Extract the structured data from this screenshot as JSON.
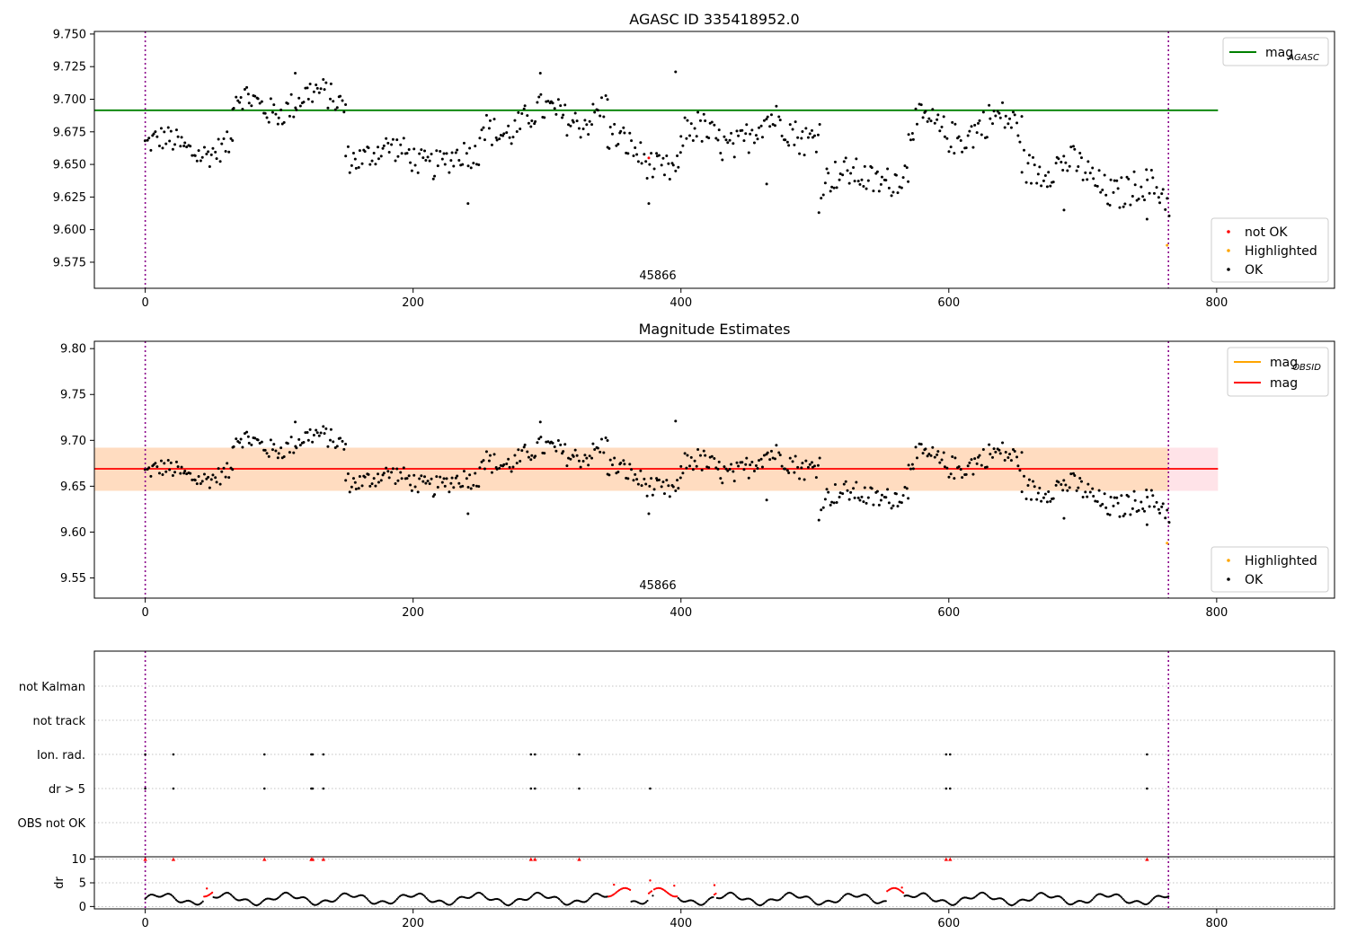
{
  "chart_data": [
    {
      "type": "scatter",
      "title": "AGASC ID 335418952.0",
      "xlim": [
        -38,
        888
      ],
      "ylim": [
        9.555,
        9.752
      ],
      "yticks": [
        "9.750",
        "9.725",
        "9.700",
        "9.675",
        "9.650",
        "9.625",
        "9.600",
        "9.575"
      ],
      "ytick_values": [
        9.75,
        9.725,
        9.7,
        9.675,
        9.65,
        9.625,
        9.6,
        9.575
      ],
      "xticks": [
        "0",
        "200",
        "400",
        "600",
        "800"
      ],
      "xtick_values": [
        0,
        200,
        400,
        600,
        800
      ],
      "obsid_label": "45866",
      "obsid_label_x": 382,
      "vlines_x": [
        0,
        764
      ],
      "reference_line": {
        "name": "mag_AGASC",
        "value": 9.6915,
        "x_range": [
          -38,
          801
        ],
        "color": "#008000"
      },
      "legend_lines": [
        {
          "label": "mag",
          "subscript": "AGASC",
          "color": "#008000"
        }
      ],
      "legend_points": [
        {
          "label": "not OK",
          "color": "#ff0000"
        },
        {
          "label": "Highlighted",
          "color": "#ffa500"
        },
        {
          "label": "OK",
          "color": "#000000"
        }
      ],
      "series": [
        {
          "name": "OK",
          "color": "#000000",
          "segments": [
            {
              "x0": 0,
              "x1": 65,
              "base_start": 9.665,
              "base_end": 9.662,
              "spread": 0.02,
              "amplitude": 0.006,
              "step": 1.3
            },
            {
              "x0": 65,
              "x1": 150,
              "base_start": 9.695,
              "base_end": 9.7,
              "spread": 0.022,
              "amplitude": 0.008,
              "step": 1.3
            },
            {
              "x0": 150,
              "x1": 250,
              "base_start": 9.66,
              "base_end": 9.652,
              "spread": 0.022,
              "amplitude": 0.006,
              "step": 1.3
            },
            {
              "x0": 250,
              "x1": 345,
              "base_start": 9.678,
              "base_end": 9.692,
              "spread": 0.024,
              "amplitude": 0.008,
              "step": 1.3
            },
            {
              "x0": 345,
              "x1": 400,
              "base_start": 9.668,
              "base_end": 9.645,
              "spread": 0.024,
              "amplitude": 0.006,
              "step": 1.3
            },
            {
              "x0": 400,
              "x1": 505,
              "base_start": 9.668,
              "base_end": 9.68,
              "spread": 0.026,
              "amplitude": 0.01,
              "step": 1.3
            },
            {
              "x0": 505,
              "x1": 570,
              "base_start": 9.638,
              "base_end": 9.642,
              "spread": 0.024,
              "amplitude": 0.005,
              "step": 1.3
            },
            {
              "x0": 570,
              "x1": 655,
              "base_start": 9.675,
              "base_end": 9.68,
              "spread": 0.026,
              "amplitude": 0.008,
              "step": 1.3
            },
            {
              "x0": 655,
              "x1": 765,
              "base_start": 9.655,
              "base_end": 9.622,
              "spread": 0.026,
              "amplitude": 0.008,
              "step": 1.3
            }
          ],
          "extra_points": [
            {
              "x": 396,
              "y": 9.721
            },
            {
              "x": 376,
              "y": 9.62
            },
            {
              "x": 241,
              "y": 9.62
            },
            {
              "x": 503,
              "y": 9.613
            },
            {
              "x": 686,
              "y": 9.615
            },
            {
              "x": 748,
              "y": 9.608
            },
            {
              "x": 464,
              "y": 9.635
            },
            {
              "x": 112,
              "y": 9.72
            },
            {
              "x": 295,
              "y": 9.72
            }
          ]
        },
        {
          "name": "not OK",
          "color": "#ff0000",
          "points": [
            {
              "x": 376,
              "y": 9.655
            }
          ]
        },
        {
          "name": "Highlighted",
          "color": "#ffa500",
          "points": [
            {
              "x": 763,
              "y": 9.588
            }
          ]
        }
      ]
    },
    {
      "type": "scatter",
      "title": "Magnitude Estimates",
      "xlim": [
        -38,
        888
      ],
      "ylim": [
        9.528,
        9.808
      ],
      "yticks": [
        "9.80",
        "9.75",
        "9.70",
        "9.65",
        "9.60",
        "9.55"
      ],
      "ytick_values": [
        9.8,
        9.75,
        9.7,
        9.65,
        9.6,
        9.55
      ],
      "xticks": [
        "0",
        "200",
        "400",
        "600",
        "800"
      ],
      "xtick_values": [
        0,
        200,
        400,
        600,
        800
      ],
      "obsid_label": "45866",
      "obsid_label_x": 382,
      "vlines_x": [
        0,
        764
      ],
      "mag_line": {
        "name": "mag",
        "value": 9.669,
        "x_range": [
          -38,
          801
        ],
        "color": "#ff0000"
      },
      "mag_band": {
        "low": 9.645,
        "high": 9.692,
        "x_range": [
          -38,
          801
        ],
        "color": "#ffc0cb"
      },
      "mag_obsid_band": {
        "low": 9.645,
        "high": 9.692,
        "x_range": [
          -38,
          764
        ],
        "color": "#ffdab9"
      },
      "legend_lines": [
        {
          "label": "mag",
          "subscript": "OBSID",
          "color": "#ffa500"
        },
        {
          "label": "mag",
          "subscript": "",
          "color": "#ff0000"
        }
      ],
      "legend_points": [
        {
          "label": "Highlighted",
          "color": "#ffa500"
        },
        {
          "label": "OK",
          "color": "#000000"
        }
      ],
      "series": [
        {
          "name": "OK",
          "color": "#000000",
          "same_as_panel": 0
        },
        {
          "name": "Highlighted",
          "color": "#ffa500",
          "points": [
            {
              "x": 763,
              "y": 9.588
            }
          ]
        }
      ]
    },
    {
      "type": "scatter",
      "title": "",
      "xlim": [
        -38,
        888
      ],
      "categories": [
        "not Kalman",
        "not track",
        "Ion. rad.",
        "dr > 5",
        "OBS not OK"
      ],
      "vlines_x": [
        0,
        764
      ],
      "flag_points": [
        {
          "category": "Ion. rad.",
          "x": [
            0,
            21,
            89,
            124,
            125,
            133,
            288,
            291,
            324,
            598,
            601,
            748
          ]
        },
        {
          "category": "dr > 5",
          "x": [
            0,
            21,
            89,
            124,
            125,
            133,
            288,
            291,
            324,
            377,
            598,
            601,
            748
          ]
        }
      ]
    },
    {
      "type": "scatter",
      "title": "",
      "ylabel": "dr",
      "xlim": [
        -38,
        888
      ],
      "ylim": [
        -0.5,
        10.5
      ],
      "yticks": [
        "10",
        "5",
        "0"
      ],
      "ytick_values": [
        10,
        5,
        0
      ],
      "xticks": [
        "0",
        "200",
        "400",
        "600",
        "800"
      ],
      "xtick_values": [
        0,
        200,
        400,
        600,
        800
      ],
      "vlines_x": [
        0,
        764
      ],
      "spikes_x": [
        0,
        21,
        89,
        124,
        125,
        133,
        288,
        291,
        324,
        598,
        601,
        748
      ],
      "spike_value": 10,
      "red_ranges": [
        [
          44,
          50
        ],
        [
          346,
          362
        ],
        [
          376,
          378
        ],
        [
          380,
          397
        ],
        [
          425,
          426
        ],
        [
          554,
          566
        ]
      ],
      "red_peak_values": {
        "46": 3.8,
        "350": 4.6,
        "377": 5.5,
        "395": 4.4,
        "425": 4.5,
        "565": 4.0
      }
    }
  ]
}
